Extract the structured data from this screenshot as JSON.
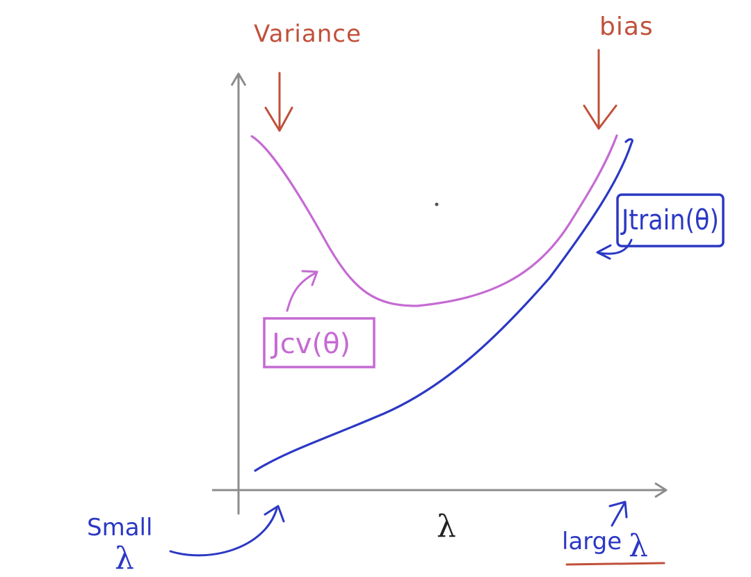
{
  "labels": {
    "variance": "Variance",
    "bias": "bias",
    "jcv": "Jcv(θ)",
    "jtrain": "Jtrain(θ)",
    "small": "Small",
    "small_lambda": "λ",
    "x_axis": "λ",
    "large": "large",
    "large_lambda": "λ"
  },
  "colors": {
    "axis": "#8c8c8c",
    "annotation_red": "#c0503a",
    "cv_curve": "#c56ad3",
    "train_curve": "#2b38c4",
    "underline": "#c0503a"
  }
}
